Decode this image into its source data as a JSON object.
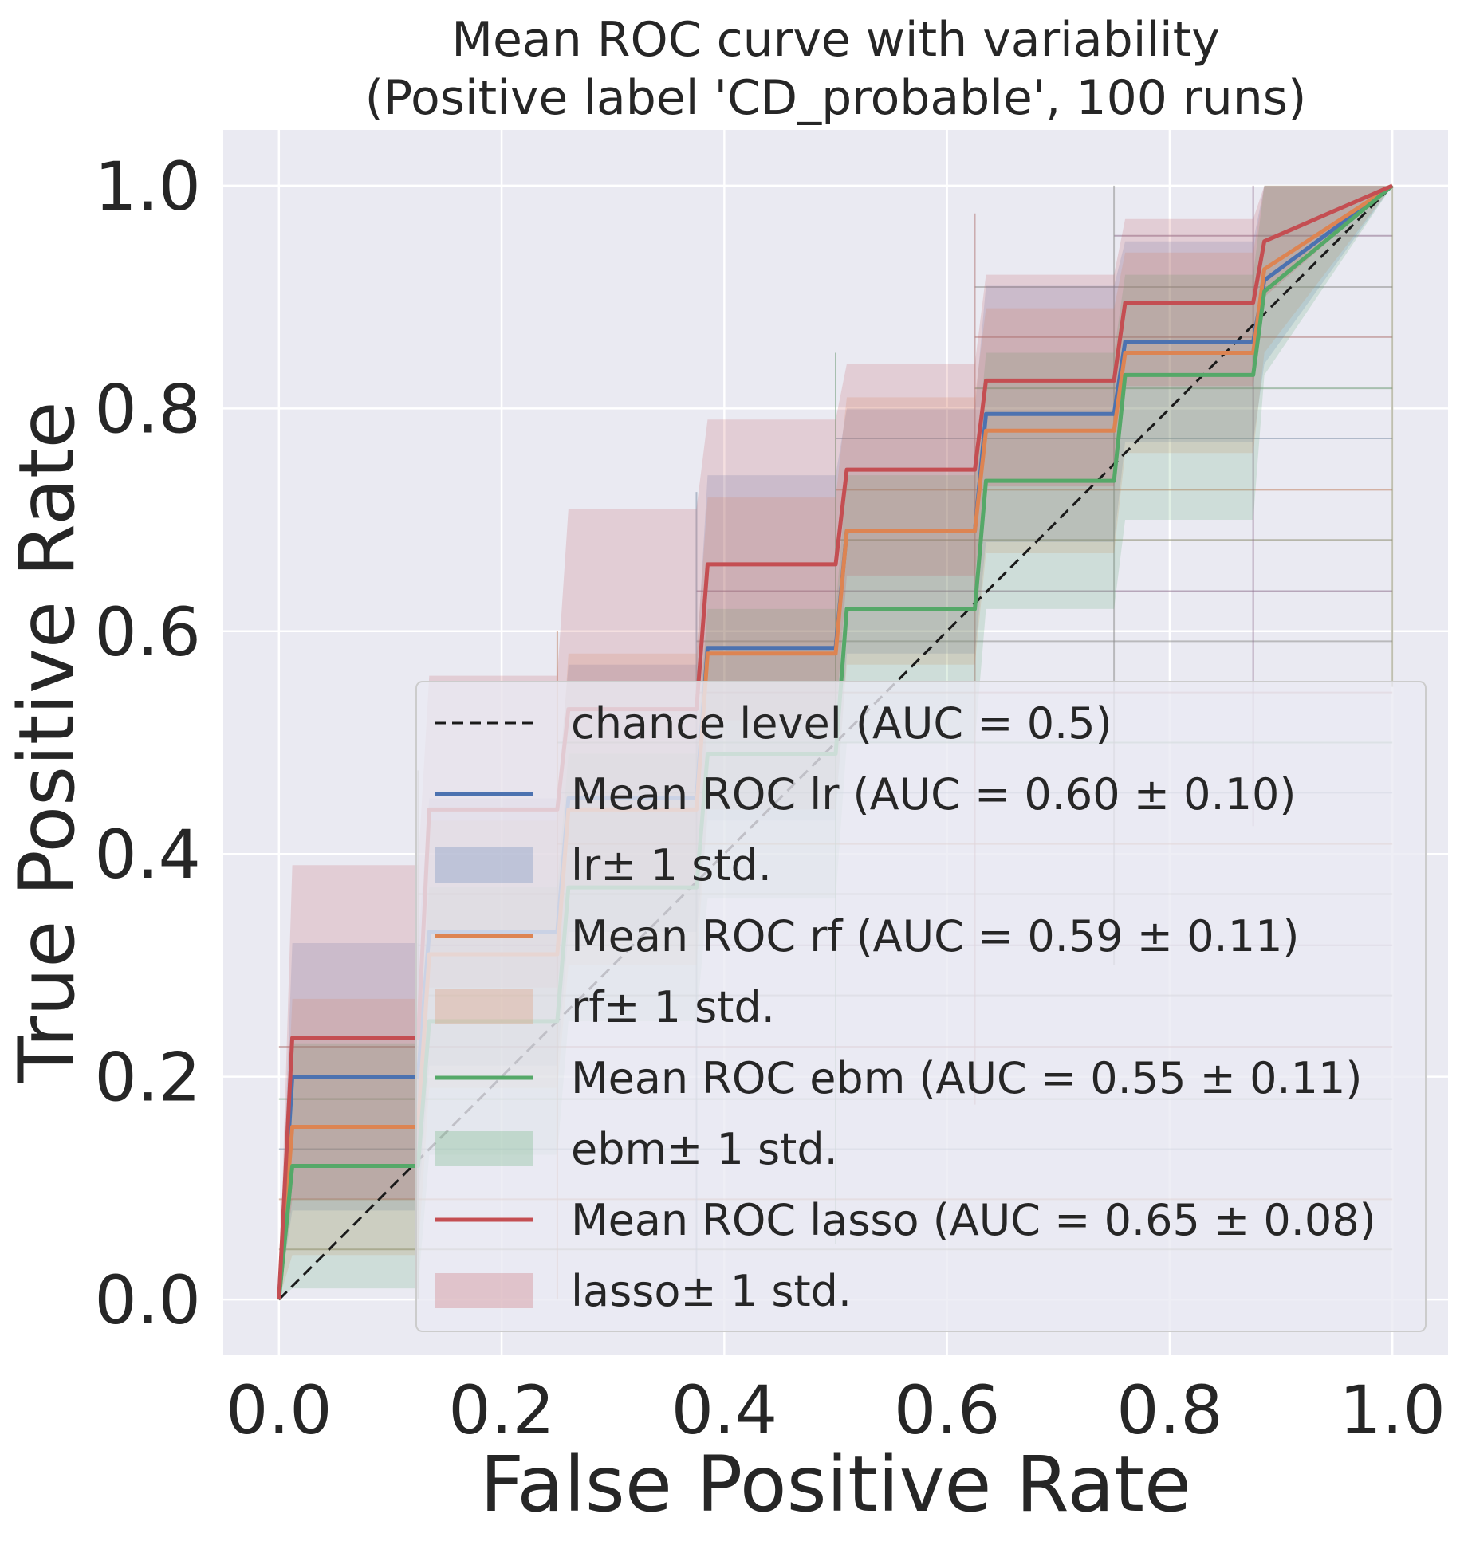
{
  "chart_data": {
    "type": "line",
    "title": "Mean ROC curve with variability",
    "subtitle": "(Positive label 'CD_probable', 100 runs)",
    "xlabel": "False Positive Rate",
    "ylabel": "True Positive Rate",
    "xlim": [
      -0.05,
      1.05
    ],
    "ylim": [
      -0.05,
      1.05
    ],
    "xticks": [
      "0.0",
      "0.2",
      "0.4",
      "0.6",
      "0.8",
      "1.0"
    ],
    "yticks": [
      "0.0",
      "0.2",
      "0.4",
      "0.6",
      "0.8",
      "1.0"
    ],
    "grid": true,
    "legend_position": "lower-right",
    "legend": [
      {
        "key": "chance",
        "kind": "line",
        "label": "chance level (AUC = 0.5)"
      },
      {
        "key": "lr",
        "kind": "line",
        "label": "Mean ROC lr (AUC = 0.60 ± 0.10)"
      },
      {
        "key": "lr",
        "kind": "band",
        "label": " lr± 1 std."
      },
      {
        "key": "rf",
        "kind": "line",
        "label": "Mean ROC rf (AUC = 0.59 ± 0.11)"
      },
      {
        "key": "rf",
        "kind": "band",
        "label": " rf± 1 std."
      },
      {
        "key": "ebm",
        "kind": "line",
        "label": "Mean ROC ebm (AUC = 0.55 ± 0.11)"
      },
      {
        "key": "ebm",
        "kind": "band",
        "label": " ebm± 1 std."
      },
      {
        "key": "lasso",
        "kind": "line",
        "label": "Mean ROC lasso (AUC = 0.65 ± 0.08)"
      },
      {
        "key": "lasso",
        "kind": "band",
        "label": " lasso± 1 std."
      }
    ],
    "chance_line": {
      "x": [
        0,
        1
      ],
      "y": [
        0,
        1
      ],
      "color": "#1a1a1a"
    },
    "series": [
      {
        "key": "lr",
        "color": "#4c72b0",
        "x": [
          0,
          0.012,
          0.125,
          0.135,
          0.25,
          0.26,
          0.375,
          0.385,
          0.5,
          0.51,
          0.625,
          0.635,
          0.75,
          0.76,
          0.875,
          0.885,
          1.0
        ],
        "y": [
          0,
          0.2,
          0.2,
          0.33,
          0.33,
          0.45,
          0.45,
          0.585,
          0.585,
          0.69,
          0.69,
          0.795,
          0.795,
          0.86,
          0.86,
          0.915,
          1.0
        ],
        "upper": [
          0,
          0.32,
          0.32,
          0.45,
          0.45,
          0.57,
          0.57,
          0.74,
          0.74,
          0.8,
          0.8,
          0.91,
          0.91,
          0.95,
          0.95,
          1.0,
          1.0
        ],
        "lower": [
          0,
          0.08,
          0.08,
          0.21,
          0.21,
          0.33,
          0.33,
          0.43,
          0.43,
          0.58,
          0.58,
          0.68,
          0.68,
          0.77,
          0.77,
          0.84,
          1.0
        ]
      },
      {
        "key": "rf",
        "color": "#dd8452",
        "x": [
          0,
          0.012,
          0.125,
          0.135,
          0.25,
          0.26,
          0.375,
          0.385,
          0.5,
          0.51,
          0.625,
          0.635,
          0.75,
          0.76,
          0.875,
          0.885,
          1.0
        ],
        "y": [
          0,
          0.155,
          0.155,
          0.31,
          0.31,
          0.44,
          0.44,
          0.58,
          0.58,
          0.69,
          0.69,
          0.78,
          0.78,
          0.85,
          0.85,
          0.925,
          1.0
        ],
        "upper": [
          0,
          0.27,
          0.27,
          0.43,
          0.43,
          0.58,
          0.58,
          0.72,
          0.72,
          0.81,
          0.81,
          0.89,
          0.89,
          0.94,
          0.94,
          1.0,
          1.0
        ],
        "lower": [
          0,
          0.04,
          0.04,
          0.19,
          0.19,
          0.3,
          0.3,
          0.44,
          0.44,
          0.57,
          0.57,
          0.67,
          0.67,
          0.76,
          0.76,
          0.85,
          1.0
        ]
      },
      {
        "key": "ebm",
        "color": "#55a868",
        "x": [
          0,
          0.012,
          0.125,
          0.135,
          0.25,
          0.26,
          0.375,
          0.385,
          0.5,
          0.51,
          0.625,
          0.635,
          0.75,
          0.76,
          0.875,
          0.885,
          1.0
        ],
        "y": [
          0,
          0.12,
          0.12,
          0.25,
          0.25,
          0.37,
          0.37,
          0.49,
          0.49,
          0.62,
          0.62,
          0.735,
          0.735,
          0.83,
          0.83,
          0.905,
          1.0
        ],
        "upper": [
          0,
          0.23,
          0.23,
          0.37,
          0.37,
          0.49,
          0.49,
          0.62,
          0.62,
          0.74,
          0.74,
          0.85,
          0.85,
          0.92,
          0.92,
          1.0,
          1.0
        ],
        "lower": [
          0,
          0.01,
          0.01,
          0.13,
          0.13,
          0.25,
          0.25,
          0.36,
          0.36,
          0.5,
          0.5,
          0.62,
          0.62,
          0.7,
          0.7,
          0.83,
          1.0
        ]
      },
      {
        "key": "lasso",
        "color": "#c44e52",
        "x": [
          0,
          0.012,
          0.125,
          0.135,
          0.25,
          0.26,
          0.375,
          0.385,
          0.5,
          0.51,
          0.625,
          0.635,
          0.75,
          0.76,
          0.875,
          0.885,
          1.0
        ],
        "y": [
          0,
          0.235,
          0.235,
          0.44,
          0.44,
          0.53,
          0.53,
          0.66,
          0.66,
          0.745,
          0.745,
          0.825,
          0.825,
          0.895,
          0.895,
          0.95,
          1.0
        ],
        "upper": [
          0,
          0.39,
          0.39,
          0.56,
          0.56,
          0.71,
          0.71,
          0.79,
          0.79,
          0.84,
          0.84,
          0.92,
          0.92,
          0.97,
          0.97,
          1.0,
          1.0
        ],
        "lower": [
          0,
          0.09,
          0.09,
          0.28,
          0.28,
          0.37,
          0.37,
          0.52,
          0.52,
          0.65,
          0.65,
          0.73,
          0.73,
          0.82,
          0.82,
          0.9,
          1.0
        ]
      }
    ],
    "runs_grid_x": [
      0.0,
      0.125,
      0.25,
      0.375,
      0.5,
      0.625,
      0.75,
      0.875,
      1.0
    ],
    "runs_grid_y": [
      0.0,
      0.045,
      0.09,
      0.135,
      0.18,
      0.227,
      0.273,
      0.318,
      0.364,
      0.409,
      0.455,
      0.5,
      0.545,
      0.591,
      0.636,
      0.682,
      0.727,
      0.773,
      0.818,
      0.864,
      0.909,
      0.955,
      1.0
    ]
  }
}
